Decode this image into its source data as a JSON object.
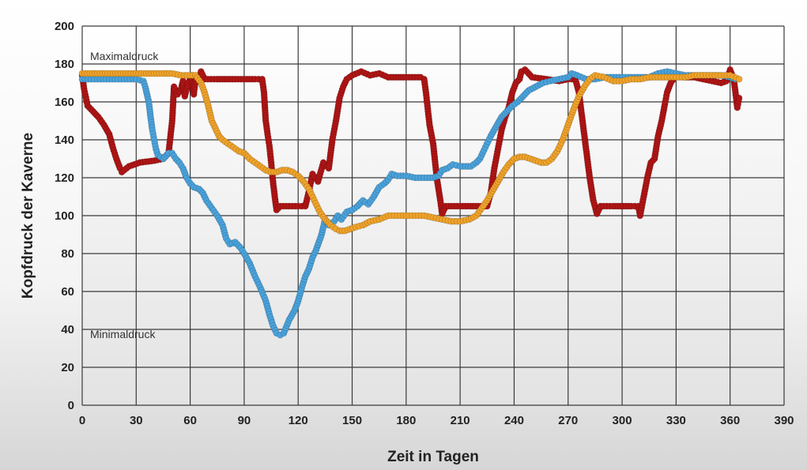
{
  "chart_data": {
    "type": "scatter",
    "title": "",
    "xlabel": "Zeit in Tagen",
    "ylabel": "Kopfdruck der Kaverne",
    "xlim": [
      0,
      390
    ],
    "ylim": [
      0,
      200
    ],
    "xticks": [
      0,
      30,
      60,
      90,
      120,
      150,
      180,
      210,
      240,
      270,
      300,
      330,
      360,
      390
    ],
    "yticks": [
      0,
      20,
      40,
      60,
      80,
      100,
      120,
      140,
      160,
      180,
      200
    ],
    "grid": true,
    "legend": "none",
    "annotations": [
      {
        "text": "Maximaldruck",
        "x": 5,
        "y": 180
      },
      {
        "text": "Minimaldruck",
        "x": 5,
        "y": 37
      }
    ],
    "series": [
      {
        "color": "#b01515",
        "points": [
          [
            0,
            174
          ],
          [
            1,
            167
          ],
          [
            3,
            158
          ],
          [
            6,
            155
          ],
          [
            9,
            152
          ],
          [
            12,
            148
          ],
          [
            15,
            143
          ],
          [
            17,
            136
          ],
          [
            19,
            130
          ],
          [
            21,
            125
          ],
          [
            22,
            123
          ],
          [
            26,
            126
          ],
          [
            32,
            128
          ],
          [
            40,
            129
          ],
          [
            45,
            130
          ],
          [
            48,
            133
          ],
          [
            50,
            150
          ],
          [
            51,
            168
          ],
          [
            53,
            164
          ],
          [
            55,
            167
          ],
          [
            56,
            171
          ],
          [
            57,
            163
          ],
          [
            59,
            170
          ],
          [
            61,
            174
          ],
          [
            62,
            164
          ],
          [
            63,
            172
          ],
          [
            65,
            173
          ],
          [
            66,
            176
          ],
          [
            68,
            172
          ],
          [
            75,
            172
          ],
          [
            85,
            172
          ],
          [
            96,
            172
          ],
          [
            100,
            172
          ],
          [
            101,
            165
          ],
          [
            102,
            150
          ],
          [
            103,
            143
          ],
          [
            104,
            137
          ],
          [
            105,
            128
          ],
          [
            106,
            118
          ],
          [
            107,
            110
          ],
          [
            108,
            103
          ],
          [
            110,
            105
          ],
          [
            115,
            105
          ],
          [
            120,
            105
          ],
          [
            124,
            105
          ],
          [
            126,
            113
          ],
          [
            128,
            122
          ],
          [
            131,
            118
          ],
          [
            134,
            128
          ],
          [
            137,
            125
          ],
          [
            139,
            140
          ],
          [
            141,
            150
          ],
          [
            143,
            162
          ],
          [
            145,
            168
          ],
          [
            147,
            172
          ],
          [
            150,
            174
          ],
          [
            155,
            176
          ],
          [
            160,
            174
          ],
          [
            165,
            175
          ],
          [
            170,
            173
          ],
          [
            180,
            173
          ],
          [
            188,
            173
          ],
          [
            190,
            172
          ],
          [
            191,
            165
          ],
          [
            193,
            148
          ],
          [
            195,
            138
          ],
          [
            197,
            120
          ],
          [
            199,
            108
          ],
          [
            200,
            101
          ],
          [
            202,
            105
          ],
          [
            210,
            105
          ],
          [
            220,
            105
          ],
          [
            225,
            105
          ],
          [
            227,
            112
          ],
          [
            229,
            125
          ],
          [
            231,
            135
          ],
          [
            233,
            145
          ],
          [
            235,
            152
          ],
          [
            237,
            157
          ],
          [
            239,
            165
          ],
          [
            241,
            170
          ],
          [
            243,
            172
          ],
          [
            244,
            176
          ],
          [
            246,
            177
          ],
          [
            250,
            173
          ],
          [
            258,
            172
          ],
          [
            265,
            171
          ],
          [
            270,
            172
          ],
          [
            274,
            172
          ],
          [
            276,
            165
          ],
          [
            278,
            150
          ],
          [
            280,
            135
          ],
          [
            282,
            120
          ],
          [
            284,
            108
          ],
          [
            286,
            101
          ],
          [
            288,
            105
          ],
          [
            295,
            105
          ],
          [
            305,
            105
          ],
          [
            309,
            105
          ],
          [
            310,
            100
          ],
          [
            312,
            110
          ],
          [
            314,
            120
          ],
          [
            316,
            128
          ],
          [
            318,
            130
          ],
          [
            320,
            142
          ],
          [
            322,
            150
          ],
          [
            324,
            160
          ],
          [
            325,
            165
          ],
          [
            327,
            170
          ],
          [
            330,
            174
          ],
          [
            335,
            173
          ],
          [
            340,
            173
          ],
          [
            345,
            172
          ],
          [
            350,
            171
          ],
          [
            355,
            170
          ],
          [
            358,
            171
          ],
          [
            360,
            177
          ],
          [
            362,
            172
          ],
          [
            363,
            165
          ],
          [
            364,
            157
          ],
          [
            365,
            162
          ]
        ]
      },
      {
        "color": "#4aa3dc",
        "points": [
          [
            0,
            172
          ],
          [
            5,
            172
          ],
          [
            10,
            172
          ],
          [
            15,
            172
          ],
          [
            20,
            172
          ],
          [
            25,
            172
          ],
          [
            30,
            172
          ],
          [
            34,
            171
          ],
          [
            35,
            168
          ],
          [
            37,
            160
          ],
          [
            38,
            152
          ],
          [
            39,
            145
          ],
          [
            40,
            140
          ],
          [
            41,
            135
          ],
          [
            42,
            132
          ],
          [
            45,
            130
          ],
          [
            48,
            133
          ],
          [
            50,
            133
          ],
          [
            52,
            130
          ],
          [
            54,
            128
          ],
          [
            56,
            125
          ],
          [
            58,
            120
          ],
          [
            60,
            117
          ],
          [
            62,
            115
          ],
          [
            65,
            114
          ],
          [
            67,
            112
          ],
          [
            69,
            108
          ],
          [
            72,
            104
          ],
          [
            75,
            100
          ],
          [
            78,
            95
          ],
          [
            80,
            88
          ],
          [
            82,
            85
          ],
          [
            85,
            86
          ],
          [
            88,
            83
          ],
          [
            90,
            80
          ],
          [
            93,
            75
          ],
          [
            96,
            68
          ],
          [
            99,
            62
          ],
          [
            102,
            55
          ],
          [
            104,
            48
          ],
          [
            106,
            42
          ],
          [
            108,
            38
          ],
          [
            110,
            37
          ],
          [
            112,
            38
          ],
          [
            115,
            45
          ],
          [
            118,
            50
          ],
          [
            120,
            55
          ],
          [
            122,
            62
          ],
          [
            124,
            68
          ],
          [
            126,
            72
          ],
          [
            128,
            78
          ],
          [
            130,
            82
          ],
          [
            133,
            90
          ],
          [
            135,
            98
          ],
          [
            137,
            95
          ],
          [
            140,
            97
          ],
          [
            142,
            100
          ],
          [
            144,
            98
          ],
          [
            147,
            102
          ],
          [
            150,
            103
          ],
          [
            153,
            105
          ],
          [
            156,
            108
          ],
          [
            159,
            106
          ],
          [
            162,
            110
          ],
          [
            165,
            115
          ],
          [
            168,
            117
          ],
          [
            170,
            119
          ],
          [
            172,
            122
          ],
          [
            175,
            121
          ],
          [
            180,
            121
          ],
          [
            185,
            120
          ],
          [
            190,
            120
          ],
          [
            195,
            120
          ],
          [
            198,
            121
          ],
          [
            200,
            124
          ],
          [
            203,
            125
          ],
          [
            206,
            127
          ],
          [
            210,
            126
          ],
          [
            213,
            126
          ],
          [
            216,
            126
          ],
          [
            219,
            128
          ],
          [
            221,
            130
          ],
          [
            224,
            136
          ],
          [
            227,
            142
          ],
          [
            230,
            147
          ],
          [
            233,
            152
          ],
          [
            236,
            155
          ],
          [
            239,
            158
          ],
          [
            242,
            160
          ],
          [
            245,
            163
          ],
          [
            248,
            166
          ],
          [
            252,
            168
          ],
          [
            256,
            170
          ],
          [
            260,
            171
          ],
          [
            265,
            172
          ],
          [
            270,
            173
          ],
          [
            272,
            175
          ],
          [
            275,
            174
          ],
          [
            280,
            172
          ],
          [
            285,
            172
          ],
          [
            290,
            173
          ],
          [
            295,
            173
          ],
          [
            300,
            173
          ],
          [
            305,
            173
          ],
          [
            310,
            173
          ],
          [
            315,
            173
          ],
          [
            320,
            175
          ],
          [
            325,
            176
          ],
          [
            330,
            175
          ],
          [
            335,
            174
          ],
          [
            340,
            174
          ],
          [
            345,
            174
          ],
          [
            350,
            174
          ],
          [
            355,
            174
          ],
          [
            360,
            173
          ],
          [
            363,
            172
          ]
        ]
      },
      {
        "color": "#f0a32a",
        "points": [
          [
            0,
            175
          ],
          [
            10,
            175
          ],
          [
            20,
            175
          ],
          [
            30,
            175
          ],
          [
            40,
            175
          ],
          [
            50,
            175
          ],
          [
            55,
            174
          ],
          [
            60,
            174
          ],
          [
            63,
            174
          ],
          [
            66,
            170
          ],
          [
            68,
            165
          ],
          [
            70,
            158
          ],
          [
            72,
            150
          ],
          [
            74,
            146
          ],
          [
            76,
            142
          ],
          [
            78,
            140
          ],
          [
            81,
            138
          ],
          [
            84,
            136
          ],
          [
            87,
            134
          ],
          [
            90,
            133
          ],
          [
            93,
            130
          ],
          [
            96,
            128
          ],
          [
            99,
            126
          ],
          [
            102,
            124
          ],
          [
            105,
            123
          ],
          [
            108,
            123
          ],
          [
            111,
            124
          ],
          [
            114,
            124
          ],
          [
            117,
            123
          ],
          [
            120,
            121
          ],
          [
            123,
            118
          ],
          [
            126,
            114
          ],
          [
            129,
            108
          ],
          [
            132,
            102
          ],
          [
            135,
            98
          ],
          [
            138,
            95
          ],
          [
            141,
            93
          ],
          [
            143,
            92
          ],
          [
            146,
            92
          ],
          [
            149,
            93
          ],
          [
            152,
            94
          ],
          [
            156,
            95
          ],
          [
            160,
            97
          ],
          [
            165,
            98
          ],
          [
            170,
            100
          ],
          [
            175,
            100
          ],
          [
            180,
            100
          ],
          [
            185,
            100
          ],
          [
            190,
            100
          ],
          [
            195,
            99
          ],
          [
            200,
            98
          ],
          [
            205,
            97
          ],
          [
            210,
            97
          ],
          [
            215,
            98
          ],
          [
            219,
            100
          ],
          [
            222,
            104
          ],
          [
            225,
            108
          ],
          [
            228,
            113
          ],
          [
            231,
            118
          ],
          [
            234,
            123
          ],
          [
            237,
            127
          ],
          [
            240,
            130
          ],
          [
            243,
            131
          ],
          [
            246,
            131
          ],
          [
            249,
            130
          ],
          [
            252,
            129
          ],
          [
            255,
            128
          ],
          [
            258,
            128
          ],
          [
            261,
            130
          ],
          [
            264,
            134
          ],
          [
            267,
            140
          ],
          [
            270,
            148
          ],
          [
            273,
            156
          ],
          [
            276,
            163
          ],
          [
            279,
            168
          ],
          [
            282,
            172
          ],
          [
            285,
            174
          ],
          [
            290,
            173
          ],
          [
            295,
            171
          ],
          [
            300,
            171
          ],
          [
            305,
            172
          ],
          [
            310,
            172
          ],
          [
            315,
            173
          ],
          [
            320,
            173
          ],
          [
            325,
            173
          ],
          [
            330,
            173
          ],
          [
            335,
            173
          ],
          [
            340,
            174
          ],
          [
            345,
            174
          ],
          [
            350,
            174
          ],
          [
            355,
            174
          ],
          [
            360,
            174
          ],
          [
            365,
            172
          ]
        ]
      }
    ]
  }
}
